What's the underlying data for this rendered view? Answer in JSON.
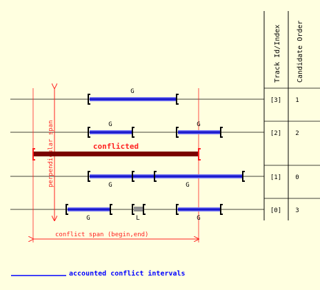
{
  "headers": {
    "track": "Track Id/Index",
    "order": "Candidate Order"
  },
  "tracks": [
    {
      "id": "[3]",
      "order": "1",
      "labels": [
        "G"
      ]
    },
    {
      "id": "[2]",
      "order": "2",
      "labels": [
        "G",
        "G"
      ]
    },
    {
      "id": "[1]",
      "order": "0",
      "labels": [
        "G",
        "G"
      ]
    },
    {
      "id": "[0]",
      "order": "3",
      "labels": [
        "G",
        "L",
        "G"
      ]
    }
  ],
  "annotations": {
    "conflicted": "conflicted",
    "perpendicular_span": "perpendicular span",
    "conflict_span": "conflict span (begin,end)"
  },
  "legend": {
    "accounted": "accounted conflict intervals"
  },
  "colors": {
    "background": "#ffffe0",
    "annotation": "#ff2020",
    "conflict_bar": "#7a0000",
    "interval": "#1010d0",
    "legend_text": "#0000ff",
    "bracket": "#000000",
    "track_line": "#000000",
    "unaccounted_bar": "#909090"
  }
}
